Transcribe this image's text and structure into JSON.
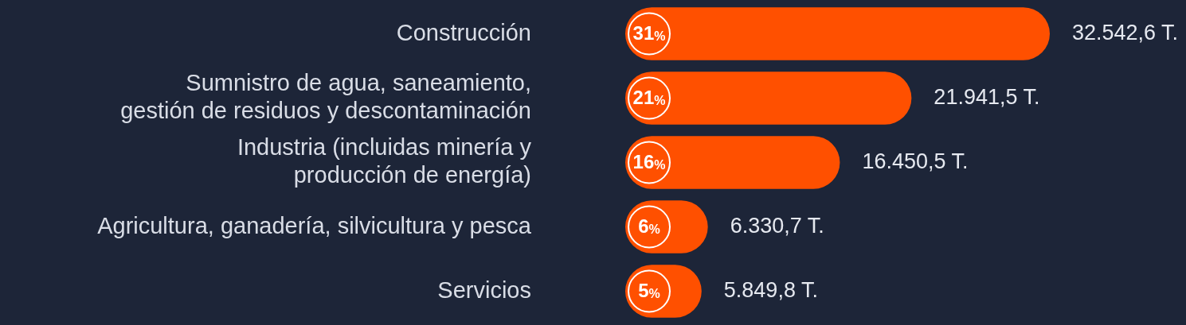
{
  "chart_data": {
    "type": "bar",
    "orientation": "horizontal",
    "tick_labels": "y",
    "categories": [
      "Construcción",
      "Sumnistro de agua, saneamiento,\ngestión de residuos y descontaminación",
      "Industria (incluidas minería y\nproducción de energía)",
      "Agricultura, ganadería, silvicultura y pesca",
      "Servicios"
    ],
    "values": [
      32542.6,
      21941.5,
      16450.5,
      6330.7,
      5849.8
    ],
    "value_labels": [
      "32.542,6 T.",
      "21.941,5 T.",
      "16.450,5 T.",
      "6.330,7 T.",
      "5.849,8 T."
    ],
    "color": "#ff5000",
    "annotations": [
      {
        "text": "31%",
        "y": "Construcción"
      },
      {
        "text": "21%",
        "y": "Sumnistro de agua, saneamiento,\ngestión de residuos y descontaminación"
      },
      {
        "text": "16%",
        "y": "Industria (incluidas minería y\nproducción de energía)"
      },
      {
        "text": "6%",
        "y": "Agricultura, ganadería, silvicultura y pesca"
      },
      {
        "text": "5%",
        "y": "Servicios"
      }
    ]
  }
}
